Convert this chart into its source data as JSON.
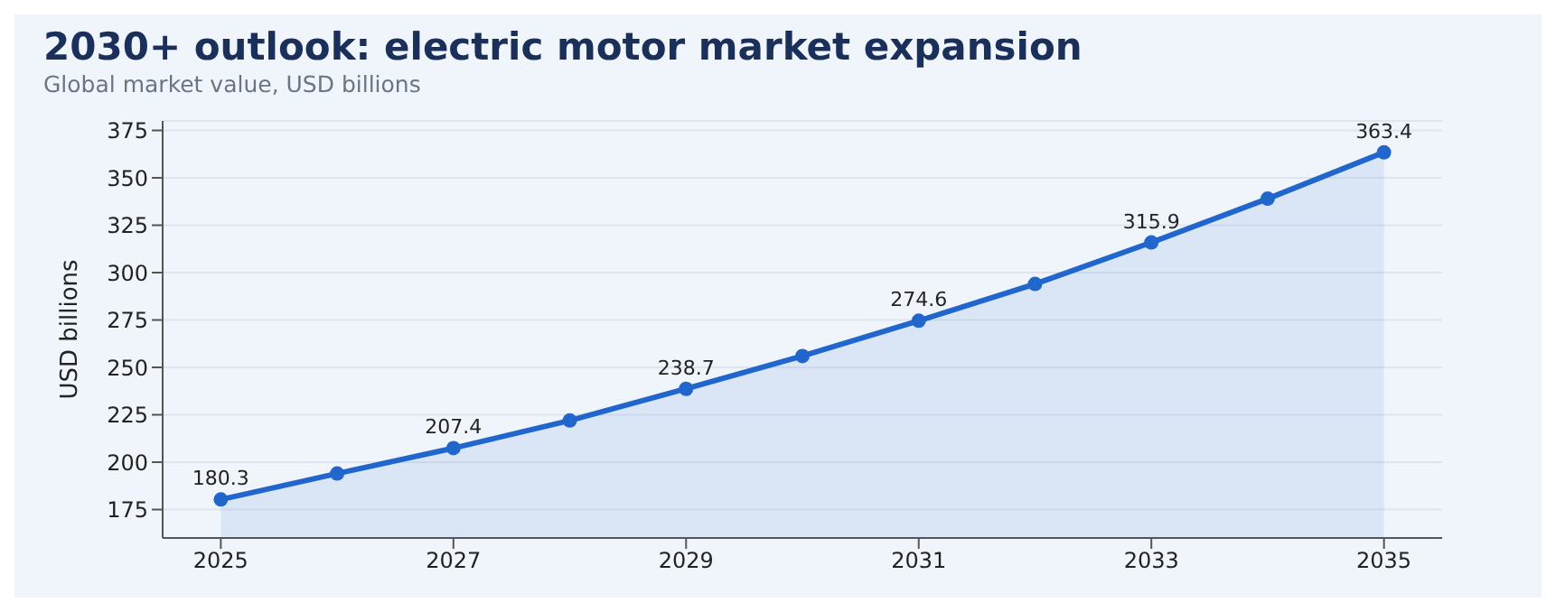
{
  "chart_data": {
    "type": "area",
    "title": "2030+ outlook: electric motor market expansion",
    "subtitle": "Global market value, USD billions",
    "ylabel": "USD billions",
    "x": [
      2025,
      2026,
      2027,
      2028,
      2029,
      2030,
      2031,
      2032,
      2033,
      2034,
      2035
    ],
    "series": [
      {
        "color": "#2166cc",
        "values": [
          180.3,
          194,
          207.4,
          222,
          238.7,
          256,
          274.6,
          294,
          315.9,
          339,
          363.4
        ],
        "value_labels": [
          "180.3",
          null,
          "207.4",
          null,
          "238.7",
          null,
          "274.6",
          null,
          "315.9",
          null,
          "363.4"
        ]
      }
    ],
    "xlim": [
      2024.5,
      2035.5
    ],
    "xticks": [
      2025,
      2027,
      2029,
      2031,
      2033,
      2035
    ],
    "ylim": [
      160,
      380
    ],
    "yticks": [
      175,
      200,
      225,
      250,
      275,
      300,
      325,
      350,
      375
    ],
    "grid": "y",
    "marker": "circle",
    "line_style": "solid",
    "legend": false
  }
}
